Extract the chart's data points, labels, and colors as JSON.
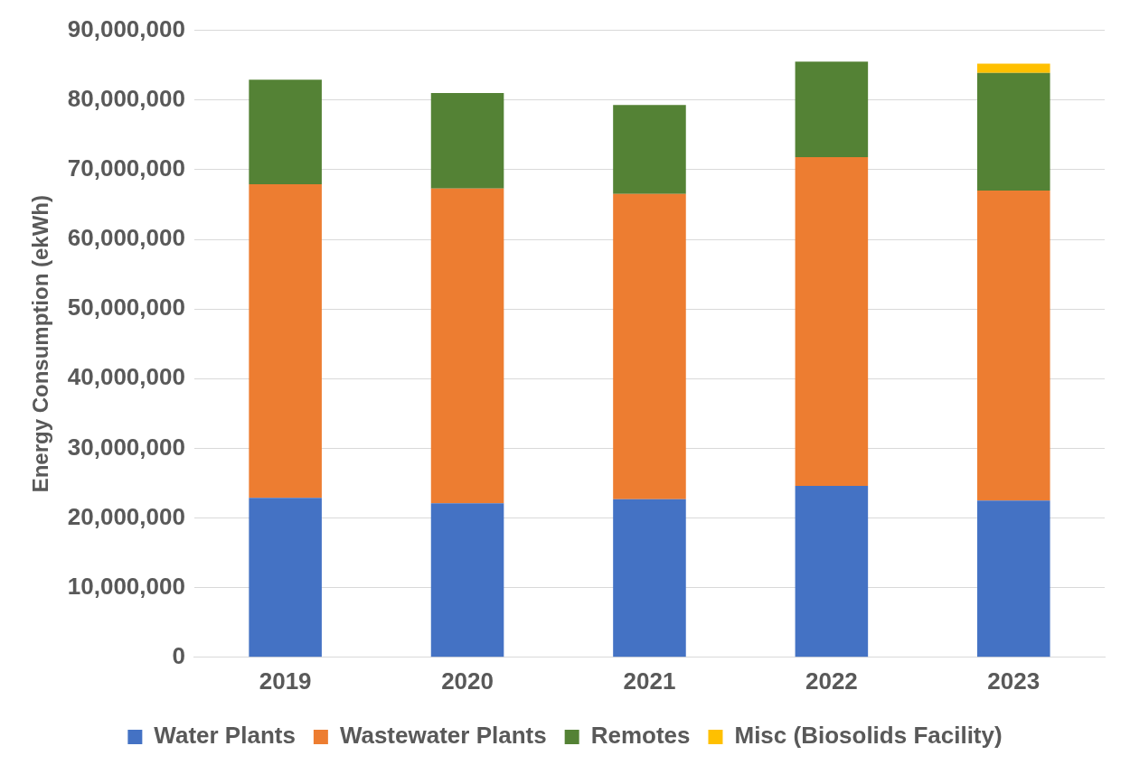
{
  "chart_data": {
    "type": "bar",
    "stacked": true,
    "ylabel": "Energy Consumption (ekWh)",
    "categories": [
      "2019",
      "2020",
      "2021",
      "2022",
      "2023"
    ],
    "series": [
      {
        "name": "Water Plants",
        "color": "#4472c4",
        "values": [
          22900000,
          22100000,
          22700000,
          24600000,
          22500000
        ]
      },
      {
        "name": "Wastewater Plants",
        "color": "#ed7d31",
        "values": [
          45000000,
          45200000,
          43800000,
          47200000,
          44500000
        ]
      },
      {
        "name": "Remotes",
        "color": "#548235",
        "values": [
          15000000,
          13700000,
          12800000,
          13700000,
          16900000
        ]
      },
      {
        "name": "Misc (Biosolids Facility)",
        "color": "#ffc000",
        "values": [
          0,
          0,
          0,
          0,
          1300000
        ]
      }
    ],
    "ylim": [
      0,
      90000000
    ],
    "yticks": [
      0,
      {
        "value": 10000000,
        "label": "10,000,000"
      },
      {
        "value": 20000000,
        "label": "20,000,000"
      },
      {
        "value": 30000000,
        "label": "30,000,000"
      },
      {
        "value": 40000000,
        "label": "40,000,000"
      },
      {
        "value": 50000000,
        "label": "50,000,000"
      },
      {
        "value": 60000000,
        "label": "60,000,000"
      },
      {
        "value": 70000000,
        "label": "70,000,000"
      },
      {
        "value": 80000000,
        "label": "80,000,000"
      },
      {
        "value": 90000000,
        "label": "90,000,000"
      }
    ],
    "grid": "y",
    "legend": "bottom"
  }
}
